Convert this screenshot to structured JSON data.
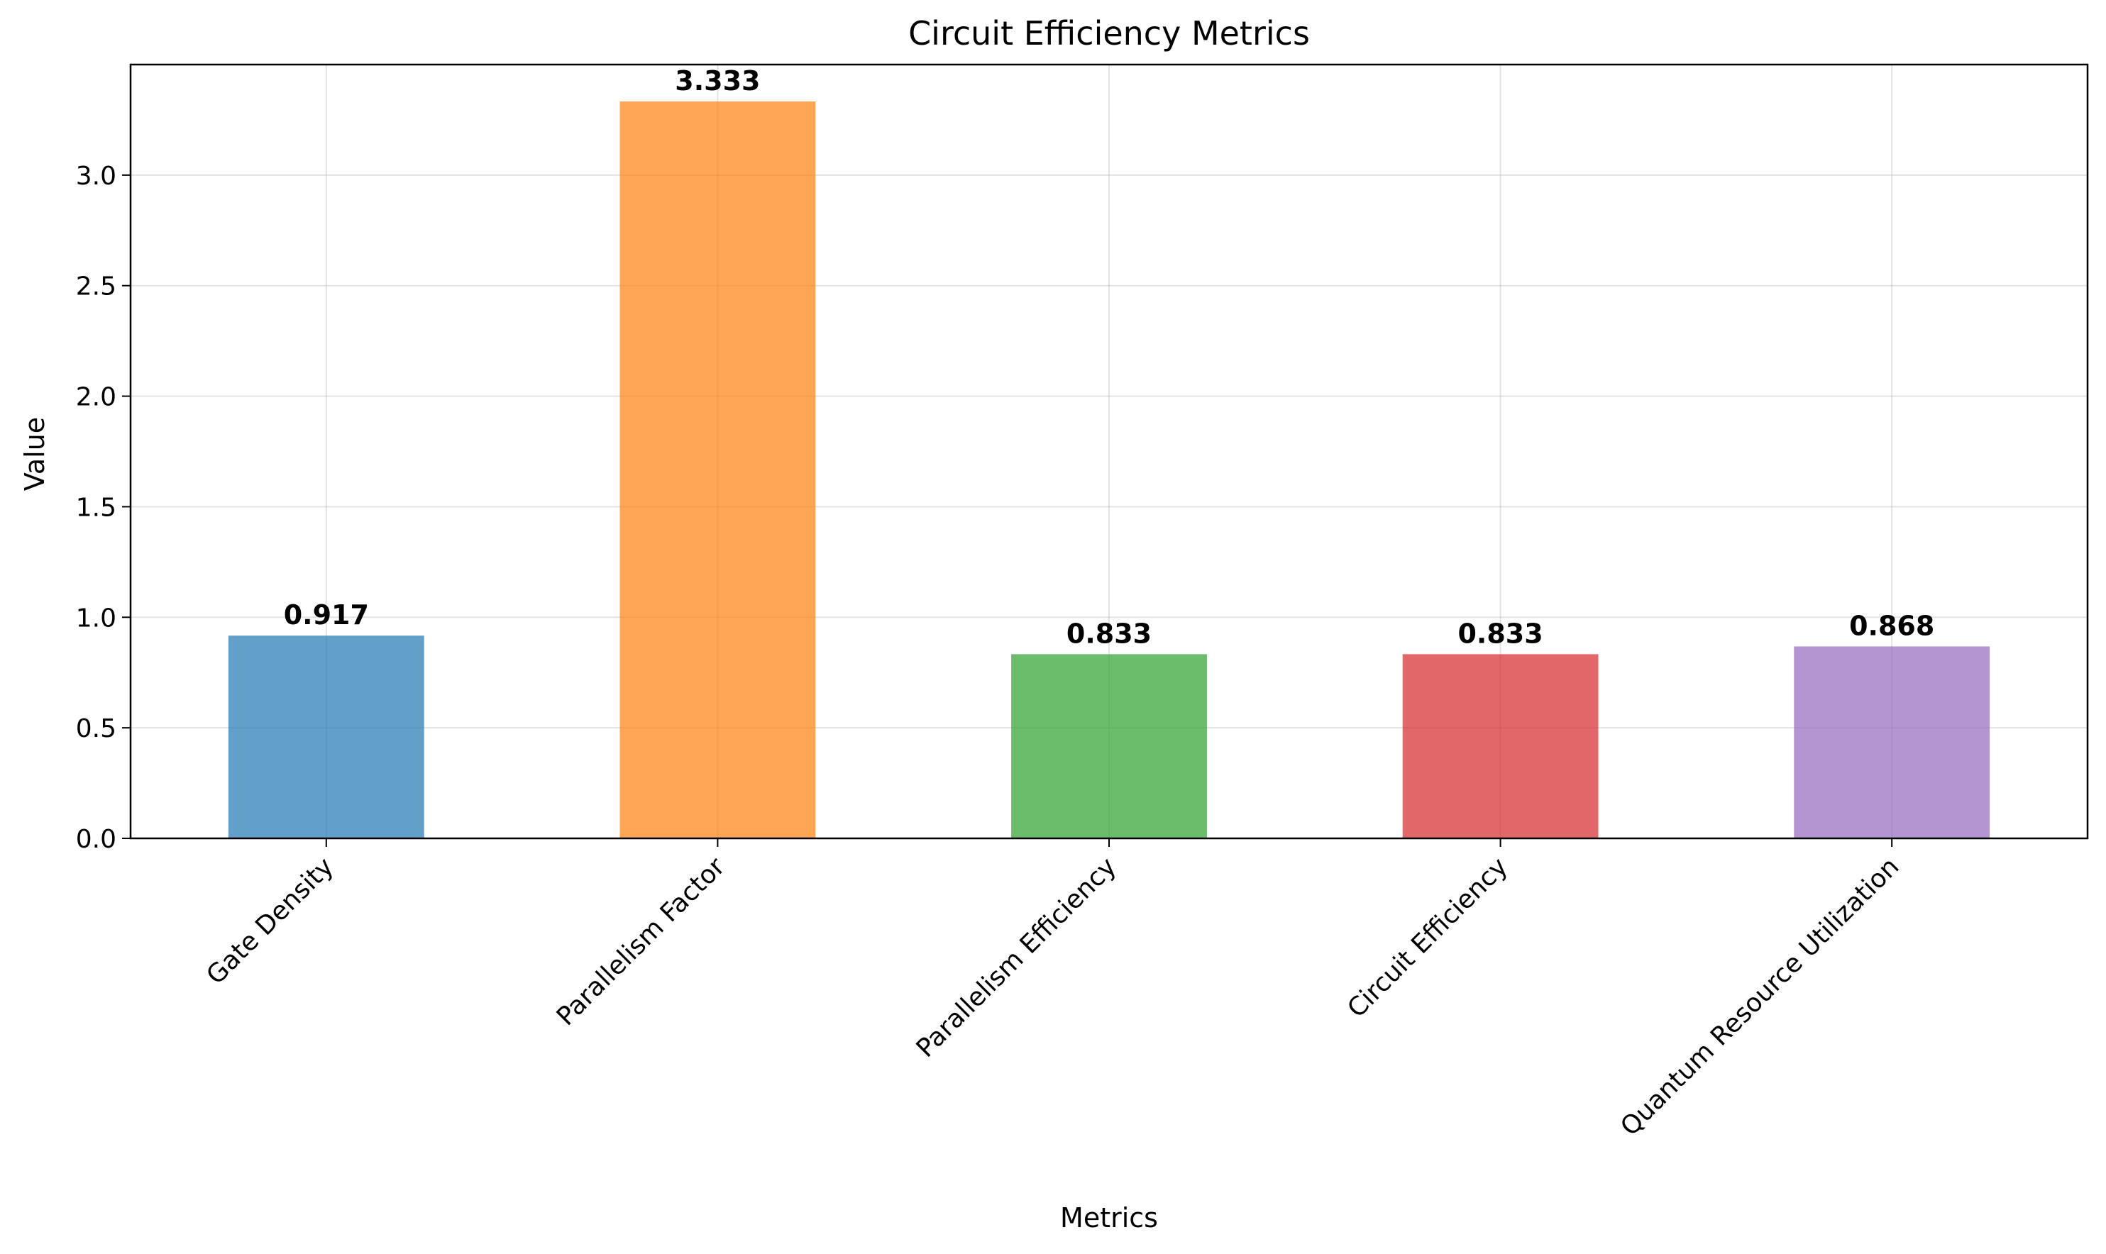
{
  "chart_data": {
    "type": "bar",
    "title": "Circuit Efficiency Metrics",
    "xlabel": "Metrics",
    "ylabel": "Value",
    "categories": [
      "Gate Density",
      "Parallelism Factor",
      "Parallelism Efficiency",
      "Circuit Efficiency",
      "Quantum Resource Utilization"
    ],
    "values": [
      0.917,
      3.333,
      0.833,
      0.833,
      0.868
    ],
    "value_labels": [
      "0.917",
      "3.333",
      "0.833",
      "0.833",
      "0.868"
    ],
    "colors": [
      "#1f77b4",
      "#ff7f0e",
      "#2ca02c",
      "#d62728",
      "#9467bd"
    ],
    "bar_opacity": 0.7,
    "ylim": [
      0,
      3.5
    ],
    "yticks": [
      "0.0",
      "0.5",
      "1.0",
      "1.5",
      "2.0",
      "2.5",
      "3.0"
    ],
    "grid": true
  }
}
